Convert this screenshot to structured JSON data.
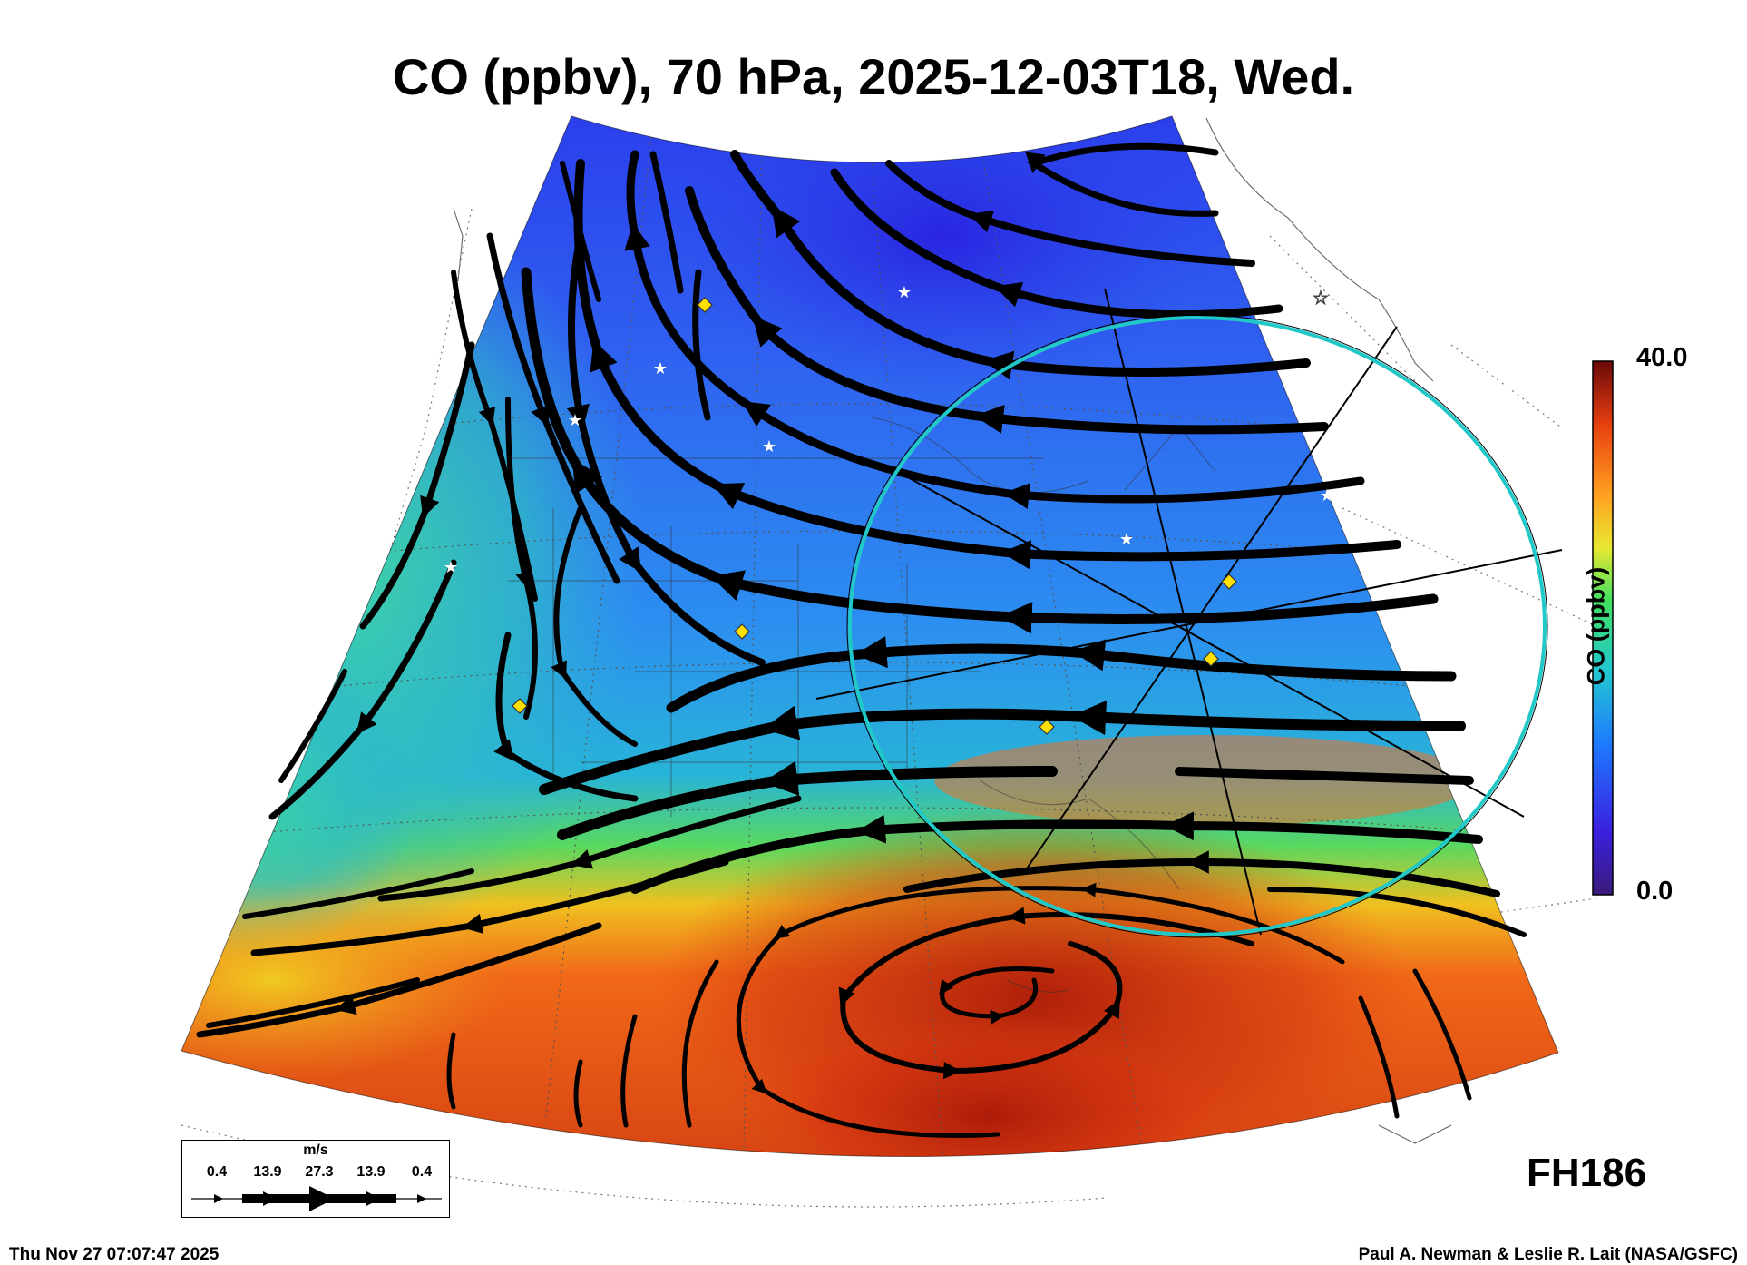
{
  "title": "CO (ppbv), 70 hPa, 2025-12-03T18, Wed.",
  "colorbar": {
    "label": "CO (ppbv)",
    "max": "40.0",
    "min": "0.0",
    "colors": [
      "#3a1a7a",
      "#2a3aff",
      "#1e90ff",
      "#22d0d0",
      "#40e060",
      "#e8e830",
      "#ff9a20",
      "#e84010",
      "#7a0808"
    ]
  },
  "forecast_hour": "FH186",
  "wind_legend": {
    "unit": "m/s",
    "speeds": [
      "0.4",
      "13.9",
      "27.3",
      "13.9",
      "0.4"
    ]
  },
  "footer": {
    "timestamp": "Thu Nov 27 07:07:47 2025",
    "credit": "Paul A. Newman & Leslie R. Lait (NASA/GSFC)"
  },
  "colors": {
    "low_co": "#2040e8",
    "mid_co": "#30c8a0",
    "high_co": "#e84a10",
    "range_ring": "#20c8c8",
    "marker_diamond": "#ffe000",
    "marker_star": "#ffffff"
  }
}
